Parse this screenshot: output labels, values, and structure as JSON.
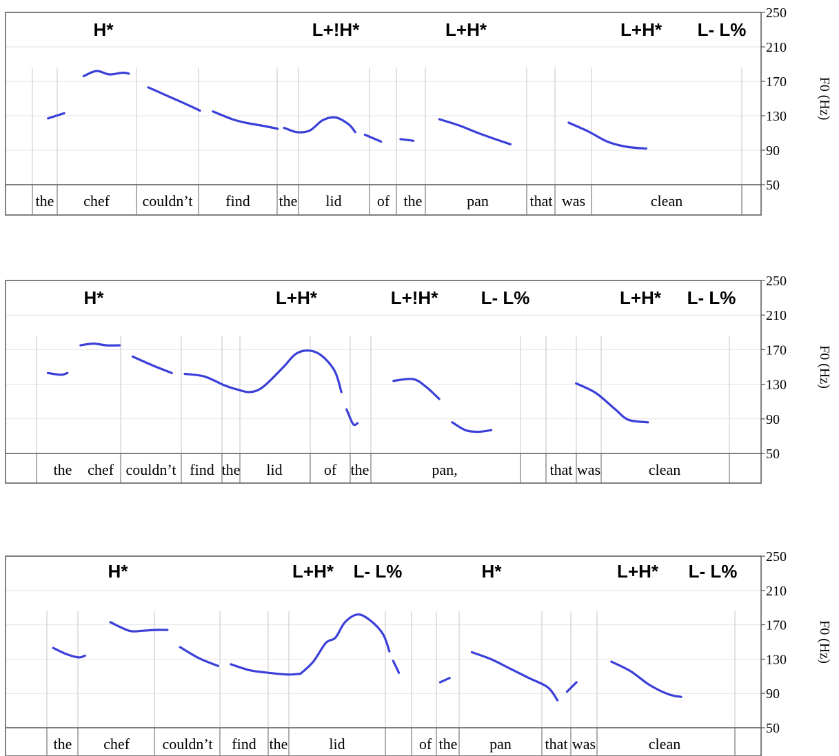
{
  "chart_data": [
    {
      "type": "line",
      "y_axis": {
        "label": "F0 (Hz)",
        "ticks": [
          50,
          90,
          130,
          170,
          210,
          250
        ],
        "ylim": [
          50,
          250
        ],
        "side": "right"
      },
      "tones": [
        "H*",
        "L+!H*",
        "L+H*",
        "L+H*",
        "L- L%"
      ],
      "words": [
        "the",
        "chef",
        "couldn’t",
        "find",
        "the",
        "lid",
        "of",
        "the",
        "pan",
        "that",
        "was",
        "clean"
      ],
      "series": [
        {
          "values": [
            [
              0.5,
              127
            ],
            [
              3.0,
              133
            ]
          ]
        },
        {
          "values": [
            [
              6.0,
              176
            ],
            [
              8.0,
              182
            ],
            [
              10.0,
              178
            ],
            [
              12.0,
              180
            ],
            [
              13.0,
              179
            ]
          ]
        },
        {
          "values": [
            [
              16.0,
              163
            ],
            [
              19.0,
              153
            ],
            [
              22.0,
              143
            ],
            [
              24.0,
              136
            ]
          ]
        },
        {
          "values": [
            [
              26.0,
              135
            ],
            [
              29.0,
              126
            ],
            [
              31.0,
              122
            ],
            [
              34.0,
              118
            ],
            [
              36.0,
              115
            ]
          ]
        },
        {
          "values": [
            [
              37.0,
              116
            ],
            [
              39.0,
              111
            ],
            [
              41.0,
              113
            ],
            [
              43.0,
              125
            ],
            [
              45.0,
              128
            ],
            [
              47.0,
              120
            ],
            [
              48.0,
              111
            ]
          ]
        },
        {
          "values": [
            [
              49.5,
              108
            ],
            [
              52.0,
              100
            ]
          ]
        },
        {
          "values": [
            [
              55.0,
              103
            ],
            [
              57.0,
              101
            ]
          ]
        },
        {
          "values": [
            [
              61.0,
              126
            ],
            [
              64.0,
              119
            ],
            [
              67.0,
              110
            ],
            [
              70.0,
              102
            ],
            [
              72.0,
              97
            ]
          ]
        },
        {
          "values": [
            [
              81.0,
              122
            ],
            [
              84.0,
              112
            ],
            [
              87.0,
              100
            ],
            [
              90.0,
              94
            ],
            [
              93.0,
              92
            ]
          ]
        }
      ]
    },
    {
      "type": "line",
      "y_axis": {
        "label": "F0 (Hz)",
        "ticks": [
          50,
          90,
          130,
          170,
          210,
          250
        ],
        "ylim": [
          50,
          250
        ],
        "side": "right"
      },
      "tones": [
        "H*",
        "L+H*",
        "L+!H*",
        "L- L%",
        "L+H*",
        "L- L%"
      ],
      "words": [
        "the",
        "chef",
        "couldn’t",
        "find",
        "the",
        "lid",
        "of",
        "the",
        "pan,",
        "that",
        "was",
        "clean"
      ],
      "series": [
        {
          "values": [
            [
              1.0,
              143
            ],
            [
              3.0,
              141
            ],
            [
              4.0,
              143
            ]
          ]
        },
        {
          "values": [
            [
              6.0,
              175
            ],
            [
              8.0,
              177
            ],
            [
              10.0,
              175
            ],
            [
              12.0,
              175
            ]
          ]
        },
        {
          "values": [
            [
              14.0,
              162
            ],
            [
              17.0,
              152
            ],
            [
              20.0,
              143
            ]
          ]
        },
        {
          "values": [
            [
              22.0,
              142
            ],
            [
              25.0,
              139
            ],
            [
              28.0,
              129
            ],
            [
              30.0,
              124
            ],
            [
              32.0,
              121
            ],
            [
              34.0,
              127
            ],
            [
              37.0,
              149
            ],
            [
              39.0,
              165
            ],
            [
              41.0,
              169
            ],
            [
              43.0,
              163
            ],
            [
              45.0,
              145
            ],
            [
              46.0,
              121
            ]
          ]
        },
        {
          "values": [
            [
              46.8,
              101
            ],
            [
              47.8,
              84
            ],
            [
              48.5,
              85
            ]
          ]
        },
        {
          "values": [
            [
              54.0,
              134
            ],
            [
              57.0,
              136
            ],
            [
              59.0,
              127
            ],
            [
              61.0,
              113
            ]
          ]
        },
        {
          "values": [
            [
              63.0,
              86
            ],
            [
              65.0,
              77
            ],
            [
              67.0,
              75
            ],
            [
              69.0,
              77
            ]
          ]
        },
        {
          "values": [
            [
              82.0,
              131
            ],
            [
              85.0,
              120
            ],
            [
              88.0,
              101
            ],
            [
              90.0,
              89
            ],
            [
              93.0,
              86
            ]
          ]
        }
      ]
    },
    {
      "type": "line",
      "y_axis": {
        "label": "F0 (Hz)",
        "ticks": [
          50,
          90,
          130,
          170,
          210,
          250
        ],
        "ylim": [
          50,
          250
        ],
        "side": "right"
      },
      "tones": [
        "H*",
        "L+H*",
        "L- L%",
        "H*",
        "L+H*",
        "L- L%"
      ],
      "words": [
        "the",
        "chef",
        "couldn’t",
        "find",
        "the",
        "lid",
        "of",
        "the",
        "pan",
        "that",
        "was",
        "clean"
      ],
      "series": [
        {
          "values": [
            [
              1.0,
              143
            ],
            [
              3.0,
              136
            ],
            [
              5.0,
              132
            ],
            [
              6.0,
              134
            ]
          ]
        },
        {
          "values": [
            [
              10.0,
              173
            ],
            [
              13.0,
              163
            ],
            [
              15.0,
              163
            ],
            [
              17.0,
              164
            ],
            [
              19.0,
              164
            ]
          ]
        },
        {
          "values": [
            [
              21.0,
              144
            ],
            [
              24.0,
              131
            ],
            [
              27.0,
              122
            ]
          ]
        },
        {
          "values": [
            [
              29.0,
              124
            ],
            [
              32.0,
              117
            ],
            [
              35.0,
              114
            ],
            [
              38.0,
              112
            ],
            [
              40.0,
              113
            ]
          ]
        },
        {
          "values": [
            [
              40.0,
              113
            ],
            [
              42.0,
              127
            ],
            [
              44.0,
              149
            ],
            [
              45.5,
              155
            ],
            [
              47.0,
              173
            ],
            [
              49.0,
              182
            ],
            [
              51.0,
              175
            ],
            [
              53.0,
              159
            ],
            [
              54.0,
              139
            ]
          ]
        },
        {
          "values": [
            [
              54.6,
              128
            ],
            [
              55.5,
              114
            ]
          ]
        },
        {
          "values": [
            [
              62.0,
              103
            ],
            [
              63.5,
              108
            ]
          ]
        },
        {
          "values": [
            [
              67.0,
              138
            ],
            [
              70.0,
              130
            ],
            [
              73.0,
              119
            ],
            [
              76.0,
              108
            ],
            [
              79.0,
              97
            ],
            [
              80.5,
              82
            ]
          ]
        },
        {
          "values": [
            [
              82.0,
              92
            ],
            [
              83.5,
              103
            ]
          ]
        },
        {
          "values": [
            [
              89.0,
              127
            ],
            [
              92.0,
              116
            ],
            [
              95.0,
              100
            ],
            [
              98.0,
              89
            ],
            [
              100.0,
              86
            ]
          ]
        }
      ]
    }
  ]
}
